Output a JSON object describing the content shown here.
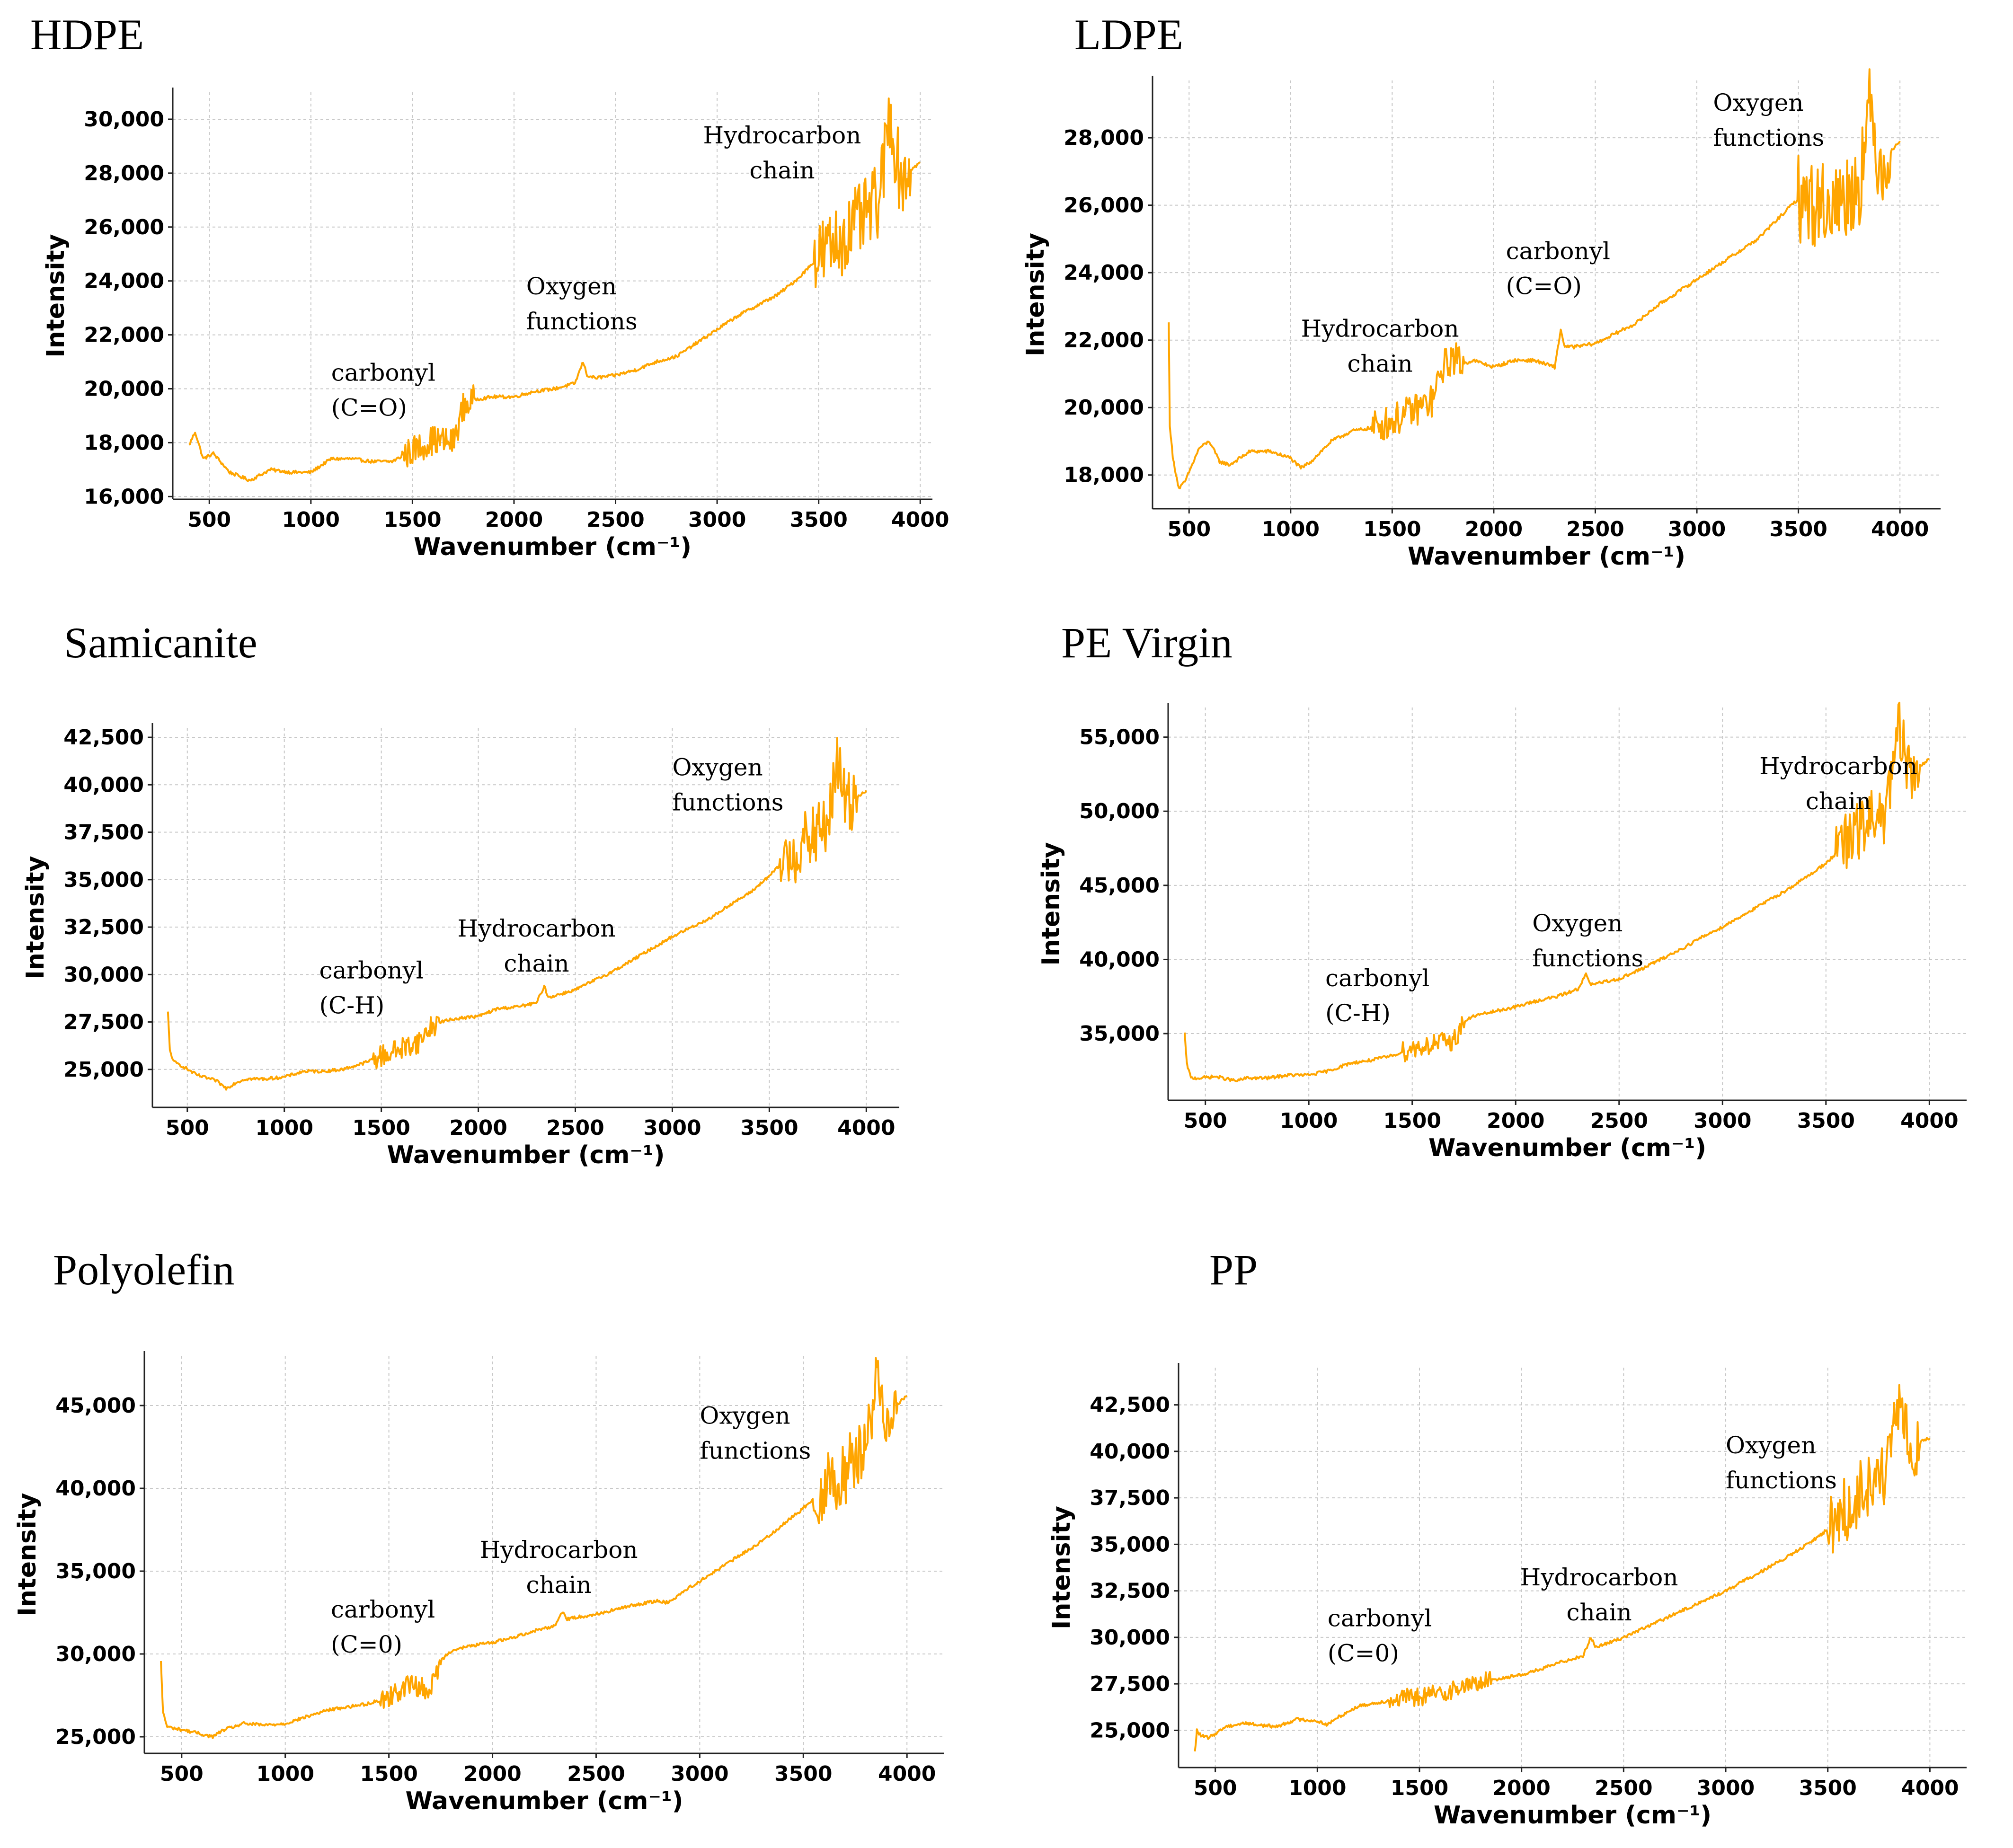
{
  "colors": {
    "series": "#FFA500",
    "grid": "#c8c8c8",
    "axis": "#222222"
  },
  "chart_data": [
    {
      "type": "line",
      "title": "HDPE",
      "xlabel": "Wavenumber (cm⁻¹)",
      "ylabel": "Intensity",
      "xlim": [
        320,
        4060
      ],
      "ylim": [
        15900,
        31000
      ],
      "xticks": [
        500,
        1000,
        1500,
        2000,
        2500,
        3000,
        3500,
        4000
      ],
      "yticks": [
        16000,
        18000,
        20000,
        22000,
        24000,
        26000,
        28000,
        30000
      ],
      "ytick_labels": [
        "16,000",
        "18,000",
        "20,000",
        "22,000",
        "24,000",
        "26,000",
        "28,000",
        "30,000"
      ],
      "grid": true,
      "x": [
        400,
        430,
        470,
        520,
        600,
        700,
        800,
        900,
        1000,
        1100,
        1200,
        1300,
        1400,
        1500,
        1600,
        1700,
        1750,
        1800,
        1900,
        2000,
        2100,
        2200,
        2300,
        2340,
        2360,
        2400,
        2500,
        2600,
        2700,
        2800,
        2900,
        3000,
        3100,
        3200,
        3300,
        3400,
        3500,
        3600,
        3700,
        3800,
        3850,
        3900,
        4000
      ],
      "y": [
        17900,
        18400,
        17400,
        17600,
        16900,
        16600,
        17000,
        16900,
        16900,
        17400,
        17400,
        17300,
        17300,
        17700,
        18100,
        18000,
        19300,
        19600,
        19700,
        19700,
        19900,
        20000,
        20200,
        21000,
        20500,
        20400,
        20500,
        20700,
        21000,
        21200,
        21700,
        22200,
        22700,
        23100,
        23500,
        24100,
        24900,
        25500,
        26200,
        27000,
        30300,
        27800,
        28400
      ],
      "noise": [
        {
          "from": 1450,
          "to": 1800,
          "amp": 550
        },
        {
          "from": 3480,
          "to": 3950,
          "amp": 1400
        }
      ],
      "annotations": [
        {
          "lines": [
            "carbonyl",
            "(C=O)"
          ],
          "x": 1100,
          "y": 20300,
          "anchor": "start"
        },
        {
          "lines": [
            "Oxygen",
            "functions"
          ],
          "x": 2060,
          "y": 23500,
          "anchor": "start"
        },
        {
          "lines": [
            "Hydrocarbon",
            "chain"
          ],
          "x": 3320,
          "y": 29100,
          "anchor": "middle"
        }
      ]
    },
    {
      "type": "line",
      "title": "LDPE",
      "xlabel": "Wavenumber (cm⁻¹)",
      "ylabel": "Intensity",
      "xlim": [
        320,
        4200
      ],
      "ylim": [
        17000,
        29700
      ],
      "xticks": [
        500,
        1000,
        1500,
        2000,
        2500,
        3000,
        3500,
        4000
      ],
      "yticks": [
        18000,
        20000,
        22000,
        24000,
        26000,
        28000
      ],
      "ytick_labels": [
        "18,000",
        "20,000",
        "22,000",
        "24,000",
        "26,000",
        "28,000"
      ],
      "grid": true,
      "x": [
        400,
        405,
        420,
        450,
        480,
        550,
        600,
        650,
        700,
        800,
        900,
        1000,
        1050,
        1100,
        1200,
        1300,
        1400,
        1500,
        1600,
        1700,
        1750,
        1800,
        1850,
        1900,
        2000,
        2100,
        2200,
        2300,
        2330,
        2350,
        2400,
        2500,
        2600,
        2700,
        2800,
        2900,
        3000,
        3100,
        3200,
        3300,
        3400,
        3500,
        3600,
        3700,
        3800,
        3850,
        3900,
        4000
      ],
      "y": [
        22500,
        19500,
        18500,
        17600,
        17800,
        18800,
        19000,
        18400,
        18300,
        18700,
        18700,
        18500,
        18200,
        18400,
        19000,
        19300,
        19400,
        19600,
        19900,
        20200,
        21200,
        21500,
        21300,
        21400,
        21200,
        21400,
        21400,
        21200,
        22300,
        21800,
        21800,
        21900,
        22200,
        22500,
        23000,
        23400,
        23800,
        24200,
        24600,
        25000,
        25600,
        26200,
        26000,
        26100,
        26700,
        28800,
        27200,
        27900
      ],
      "noise": [
        {
          "from": 1400,
          "to": 1850,
          "amp": 500
        },
        {
          "from": 3500,
          "to": 3950,
          "amp": 1300
        }
      ],
      "annotations": [
        {
          "lines": [
            "carbonyl",
            "(C=O)"
          ],
          "x": 2060,
          "y": 24400,
          "anchor": "start"
        },
        {
          "lines": [
            "Hydrocarbon",
            "chain"
          ],
          "x": 1440,
          "y": 22100,
          "anchor": "middle"
        },
        {
          "lines": [
            "Oxygen",
            "functions"
          ],
          "x": 3080,
          "y": 28800,
          "anchor": "start"
        }
      ]
    },
    {
      "type": "line",
      "title": "Samicanite",
      "xlabel": "Wavenumber (cm⁻¹)",
      "ylabel": "Intensity",
      "xlim": [
        320,
        4170
      ],
      "ylim": [
        23000,
        43000
      ],
      "xticks": [
        500,
        1000,
        1500,
        2000,
        2500,
        3000,
        3500,
        4000
      ],
      "yticks": [
        25000,
        27500,
        30000,
        32500,
        35000,
        37500,
        40000,
        42500
      ],
      "ytick_labels": [
        "25,000",
        "27,500",
        "30,000",
        "32,500",
        "35,000",
        "37,500",
        "40,000",
        "42,500"
      ],
      "grid": true,
      "x": [
        400,
        410,
        430,
        470,
        550,
        650,
        700,
        750,
        800,
        900,
        1000,
        1100,
        1200,
        1300,
        1400,
        1500,
        1600,
        1700,
        1750,
        1800,
        1900,
        2000,
        2100,
        2200,
        2300,
        2340,
        2360,
        2400,
        2500,
        2600,
        2700,
        2800,
        2900,
        3000,
        3100,
        3200,
        3300,
        3400,
        3500,
        3600,
        3700,
        3800,
        3850,
        3900,
        4000
      ],
      "y": [
        28000,
        26000,
        25400,
        25200,
        24700,
        24400,
        24000,
        24300,
        24500,
        24500,
        24600,
        24900,
        24900,
        25000,
        25300,
        25700,
        26100,
        26500,
        27200,
        27500,
        27700,
        27800,
        28200,
        28300,
        28500,
        29400,
        28800,
        28900,
        29200,
        29700,
        30200,
        30800,
        31400,
        32000,
        32500,
        33000,
        33700,
        34300,
        35200,
        36200,
        37000,
        37900,
        41000,
        39000,
        39700
      ],
      "noise": [
        {
          "from": 1450,
          "to": 1800,
          "amp": 600
        },
        {
          "from": 3550,
          "to": 3950,
          "amp": 1700
        }
      ],
      "annotations": [
        {
          "lines": [
            "carbonyl",
            "(C-H)"
          ],
          "x": 1180,
          "y": 29800,
          "anchor": "start"
        },
        {
          "lines": [
            "Hydrocarbon",
            "chain"
          ],
          "x": 2300,
          "y": 32000,
          "anchor": "middle"
        },
        {
          "lines": [
            "Oxygen",
            "functions"
          ],
          "x": 3000,
          "y": 40500,
          "anchor": "start"
        }
      ]
    },
    {
      "type": "line",
      "title": "PE Virgin",
      "xlabel": "Wavenumber (cm⁻¹)",
      "ylabel": "Intensity",
      "xlim": [
        320,
        4180
      ],
      "ylim": [
        30500,
        57000
      ],
      "xticks": [
        500,
        1000,
        1500,
        2000,
        2500,
        3000,
        3500,
        4000
      ],
      "yticks": [
        35000,
        40000,
        45000,
        50000,
        55000
      ],
      "ytick_labels": [
        "35,000",
        "40,000",
        "45,000",
        "50,000",
        "55,000"
      ],
      "grid": true,
      "x": [
        400,
        410,
        430,
        470,
        550,
        650,
        700,
        800,
        900,
        1000,
        1100,
        1200,
        1300,
        1400,
        1500,
        1600,
        1700,
        1750,
        1800,
        1900,
        2000,
        2100,
        2200,
        2300,
        2340,
        2360,
        2400,
        2500,
        2600,
        2700,
        2800,
        2900,
        3000,
        3100,
        3200,
        3300,
        3400,
        3500,
        3600,
        3700,
        3800,
        3850,
        3900,
        4000
      ],
      "y": [
        35000,
        33000,
        32000,
        32000,
        32100,
        31800,
        32000,
        32000,
        32200,
        32200,
        32500,
        33000,
        33200,
        33500,
        34000,
        34300,
        34500,
        35800,
        36200,
        36500,
        36800,
        37200,
        37500,
        38000,
        39000,
        38300,
        38400,
        38700,
        39300,
        40000,
        40700,
        41500,
        42200,
        43000,
        43800,
        44600,
        45500,
        46500,
        47800,
        49200,
        50200,
        55500,
        52500,
        53500
      ],
      "noise": [
        {
          "from": 1450,
          "to": 1750,
          "amp": 700
        },
        {
          "from": 3550,
          "to": 3950,
          "amp": 2200
        }
      ],
      "annotations": [
        {
          "lines": [
            "carbonyl",
            "(C-H)"
          ],
          "x": 1080,
          "y": 38200,
          "anchor": "start"
        },
        {
          "lines": [
            "Oxygen",
            "functions"
          ],
          "x": 2080,
          "y": 41900,
          "anchor": "start"
        },
        {
          "lines": [
            "Hydrocarbon",
            "chain"
          ],
          "x": 3560,
          "y": 52500,
          "anchor": "middle"
        }
      ]
    },
    {
      "type": "line",
      "title": "Polyolefin",
      "xlabel": "Wavenumber (cm⁻¹)",
      "ylabel": "Intensity",
      "xlim": [
        320,
        4180
      ],
      "ylim": [
        24000,
        48000
      ],
      "xticks": [
        500,
        1000,
        1500,
        2000,
        2500,
        3000,
        3500,
        4000
      ],
      "yticks": [
        25000,
        30000,
        35000,
        40000,
        45000
      ],
      "ytick_labels": [
        "25,000",
        "30,000",
        "35,000",
        "40,000",
        "45,000"
      ],
      "grid": true,
      "x": [
        400,
        410,
        430,
        470,
        550,
        650,
        700,
        800,
        900,
        1000,
        1100,
        1200,
        1300,
        1400,
        1500,
        1600,
        1700,
        1750,
        1800,
        1900,
        2000,
        2100,
        2200,
        2300,
        2340,
        2360,
        2400,
        2500,
        2600,
        2700,
        2800,
        2850,
        2900,
        3000,
        3100,
        3200,
        3300,
        3400,
        3500,
        3600,
        3700,
        3800,
        3850,
        3900,
        4000
      ],
      "y": [
        29500,
        26500,
        25600,
        25500,
        25300,
        25000,
        25400,
        25800,
        25700,
        25800,
        26200,
        26600,
        26800,
        27000,
        27400,
        28200,
        27800,
        29600,
        30200,
        30500,
        30700,
        31000,
        31400,
        31700,
        32600,
        32100,
        32200,
        32400,
        32700,
        33000,
        33200,
        33100,
        33600,
        34400,
        35200,
        36000,
        36800,
        37800,
        38800,
        40000,
        41000,
        42500,
        46500,
        44500,
        45600
      ],
      "noise": [
        {
          "from": 1450,
          "to": 1750,
          "amp": 600
        },
        {
          "from": 3550,
          "to": 3950,
          "amp": 2000
        }
      ],
      "annotations": [
        {
          "lines": [
            "carbonyl",
            "(C=0)"
          ],
          "x": 1220,
          "y": 32200,
          "anchor": "start"
        },
        {
          "lines": [
            "Hydrocarbon",
            "chain"
          ],
          "x": 2320,
          "y": 35800,
          "anchor": "middle"
        },
        {
          "lines": [
            "Oxygen",
            "functions"
          ],
          "x": 3000,
          "y": 43900,
          "anchor": "start"
        }
      ]
    },
    {
      "type": "line",
      "title": "PP",
      "xlabel": "Wavenumber (cm⁻¹)",
      "ylabel": "Intensity",
      "xlim": [
        320,
        4180
      ],
      "ylim": [
        23000,
        44500
      ],
      "xticks": [
        500,
        1000,
        1500,
        2000,
        2500,
        3000,
        3500,
        4000
      ],
      "yticks": [
        25000,
        27500,
        30000,
        32500,
        35000,
        37500,
        40000,
        42500
      ],
      "ytick_labels": [
        "25,000",
        "27,500",
        "30,000",
        "32,500",
        "35,000",
        "37,500",
        "40,000",
        "42,500"
      ],
      "grid": true,
      "x": [
        400,
        410,
        430,
        470,
        550,
        650,
        700,
        800,
        900,
        1000,
        1050,
        1100,
        1200,
        1300,
        1400,
        1500,
        1600,
        1700,
        1800,
        1900,
        2000,
        2100,
        2200,
        2300,
        2340,
        2360,
        2400,
        2500,
        2600,
        2700,
        2800,
        2900,
        3000,
        3100,
        3200,
        3300,
        3400,
        3500,
        3600,
        3700,
        3800,
        3850,
        3900,
        4000
      ],
      "y": [
        23800,
        25000,
        24700,
        24600,
        25200,
        25400,
        25300,
        25200,
        25600,
        25500,
        25300,
        25700,
        26300,
        26500,
        26700,
        26800,
        27000,
        27300,
        27600,
        27800,
        28000,
        28300,
        28700,
        29000,
        30000,
        29500,
        29600,
        30000,
        30500,
        31000,
        31500,
        32000,
        32500,
        33100,
        33700,
        34300,
        35000,
        35800,
        37000,
        38200,
        39200,
        42500,
        40300,
        40700
      ],
      "noise": [
        {
          "from": 1350,
          "to": 1850,
          "amp": 500
        },
        {
          "from": 3500,
          "to": 3950,
          "amp": 1800
        }
      ],
      "annotations": [
        {
          "lines": [
            "carbonyl",
            "(C=0)"
          ],
          "x": 1050,
          "y": 30600,
          "anchor": "start"
        },
        {
          "lines": [
            "Hydrocarbon",
            "chain"
          ],
          "x": 2380,
          "y": 32800,
          "anchor": "middle"
        },
        {
          "lines": [
            "Oxygen",
            "functions"
          ],
          "x": 3000,
          "y": 39900,
          "anchor": "start"
        }
      ]
    }
  ]
}
